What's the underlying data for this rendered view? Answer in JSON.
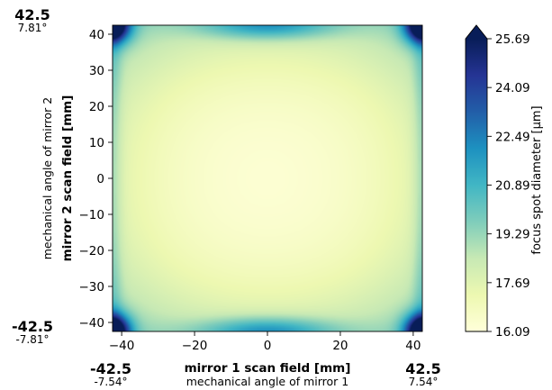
{
  "chart_data": {
    "type": "heatmap",
    "title": "",
    "xlabel": "mirror 1 scan field [mm]",
    "xlabel_secondary": "mechanical angle of mirror 1",
    "ylabel": "mirror 2 scan field [mm]",
    "ylabel_secondary": "mechanical angle of mirror 2",
    "xlim": [
      -42.5,
      42.5
    ],
    "ylim": [
      -42.5,
      42.5
    ],
    "x_ticks": [
      -40,
      -20,
      0,
      20,
      40
    ],
    "x_tick_labels": [
      "−40",
      "−20",
      "0",
      "20",
      "40"
    ],
    "y_ticks": [
      -40,
      -30,
      -20,
      -10,
      0,
      10,
      20,
      30,
      40
    ],
    "y_tick_labels": [
      "−40",
      "−30",
      "−20",
      "−10",
      "0",
      "10",
      "20",
      "30",
      "40"
    ],
    "x_extremes": {
      "min_value": "-42.5",
      "min_angle": "-7.54°",
      "max_value": "42.5",
      "max_angle": "7.54°"
    },
    "y_extremes": {
      "min_value": "-42.5",
      "min_angle": "-7.81°",
      "max_value": "42.5",
      "max_angle": "7.81°"
    },
    "colorbar": {
      "label": "focus spot diameter [μm]",
      "min": 16.09,
      "max": 25.69,
      "ticks": [
        16.09,
        17.69,
        19.29,
        20.89,
        22.49,
        24.09,
        25.69
      ],
      "tick_labels": [
        "16.09",
        "17.69",
        "19.29",
        "20.89",
        "22.49",
        "24.09",
        "25.69"
      ],
      "extend": "max",
      "colormap": [
        "#ffffd9",
        "#edf8b1",
        "#c7e9b4",
        "#7fcdbb",
        "#41b6c4",
        "#1d91c0",
        "#225ea8",
        "#253494",
        "#081d58"
      ]
    },
    "grid": false,
    "legend": "none"
  }
}
